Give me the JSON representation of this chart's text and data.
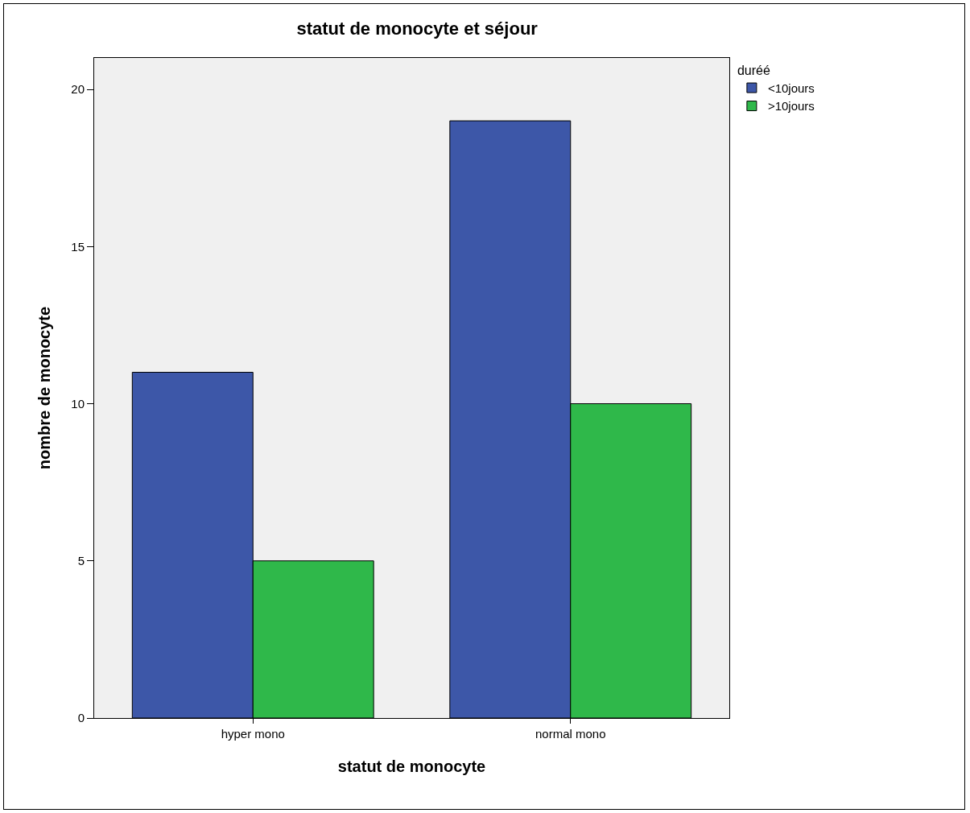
{
  "chart_data": {
    "type": "bar",
    "title": "statut de monocyte et séjour",
    "xlabel": "statut de monocyte",
    "ylabel": "nombre de monocyte",
    "legend_title": "duréé",
    "categories": [
      "hyper mono",
      "normal mono"
    ],
    "series": [
      {
        "name": "<10jours",
        "color": "#3d57a8",
        "values": [
          11,
          19
        ]
      },
      {
        "name": ">10jours",
        "color": "#2fb84a",
        "values": [
          5,
          10
        ]
      }
    ],
    "ylim": [
      0,
      21
    ],
    "yticks": [
      0,
      5,
      10,
      15,
      20
    ],
    "grid": false,
    "legend": "top right"
  }
}
